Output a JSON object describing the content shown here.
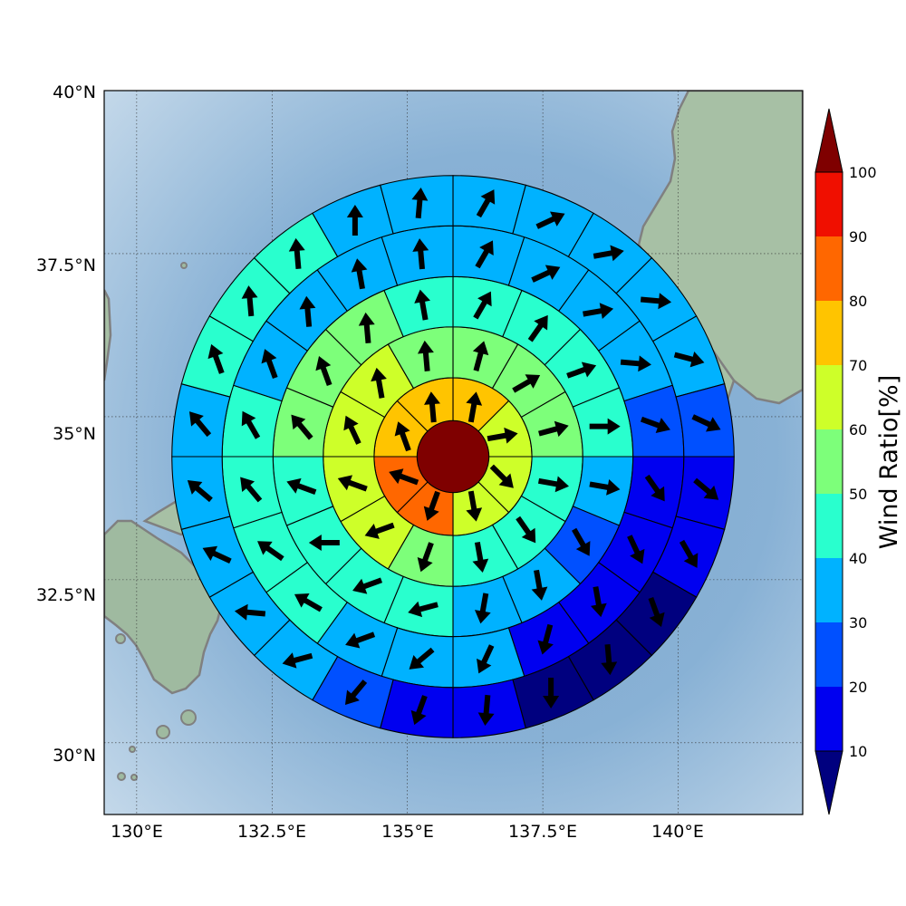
{
  "map": {
    "lat_ticks": [
      {
        "value": 30,
        "label": "30°N"
      },
      {
        "value": 32.5,
        "label": "32.5°N"
      },
      {
        "value": 35,
        "label": "35°N"
      },
      {
        "value": 37.5,
        "label": "37.5°N"
      },
      {
        "value": 40,
        "label": "40°N"
      }
    ],
    "lon_ticks": [
      {
        "value": 130,
        "label": "130°E"
      },
      {
        "value": 132.5,
        "label": "132.5°E"
      },
      {
        "value": 135,
        "label": "135°E"
      },
      {
        "value": 137.5,
        "label": "137.5°E"
      },
      {
        "value": 140,
        "label": "140°E"
      }
    ],
    "colors": {
      "sea": "#8db3d6",
      "land": "#9fbaa0",
      "coastline": "#808080",
      "grid": "#333333",
      "ring_edge": "#000000",
      "arrow": "#000000"
    }
  },
  "colorbar": {
    "label": "Wind Ratio[%]",
    "ticks": [
      "10",
      "20",
      "30",
      "40",
      "50",
      "60",
      "70",
      "80",
      "90",
      "100"
    ],
    "colors": [
      "#00007f",
      "#0000f0",
      "#0050ff",
      "#00b2ff",
      "#29ffce",
      "#7dff7a",
      "#ceff29",
      "#ffc400",
      "#ff6700",
      "#f00f00",
      "#7f0000"
    ],
    "extend": "both"
  },
  "chart_data": {
    "type": "polar_sector_map",
    "center_value": 100,
    "ring_radii": [
      0,
      0.44,
      1.21,
      1.99,
      2.76,
      3.54,
      4.31
    ],
    "rings": [
      {
        "wind_ratio": [
          70,
          60,
          60,
          60,
          80,
          80,
          70,
          70
        ],
        "wind_dir_deg": [
          10,
          80,
          135,
          170,
          200,
          290,
          340,
          355
        ]
      },
      {
        "wind_ratio": [
          50,
          50,
          50,
          40,
          40,
          40,
          50,
          60,
          60,
          60,
          60,
          50
        ],
        "wind_dir_deg": [
          15,
          60,
          75,
          100,
          145,
          170,
          200,
          250,
          290,
          335,
          350,
          355
        ]
      },
      {
        "wind_ratio": [
          40,
          40,
          40,
          40,
          30,
          20,
          30,
          30,
          40,
          40,
          40,
          40,
          50,
          50,
          50,
          40
        ],
        "wind_dir_deg": [
          30,
          35,
          70,
          90,
          100,
          150,
          170,
          190,
          255,
          250,
          270,
          290,
          320,
          340,
          355,
          350
        ]
      },
      {
        "wind_ratio": [
          30,
          30,
          30,
          30,
          20,
          10,
          10,
          10,
          10,
          30,
          30,
          30,
          40,
          40,
          40,
          40,
          30,
          30,
          30,
          30
        ],
        "wind_dir_deg": [
          30,
          65,
          80,
          95,
          110,
          145,
          155,
          170,
          195,
          205,
          230,
          250,
          300,
          305,
          320,
          330,
          340,
          355,
          350,
          355
        ]
      },
      {
        "wind_ratio": [
          30,
          30,
          30,
          30,
          30,
          20,
          10,
          10,
          0,
          0,
          0,
          10,
          10,
          20,
          30,
          30,
          30,
          30,
          30,
          40,
          40,
          40,
          30,
          30
        ],
        "wind_dir_deg": [
          30,
          65,
          80,
          95,
          105,
          115,
          130,
          150,
          160,
          175,
          180,
          185,
          200,
          220,
          255,
          275,
          295,
          310,
          320,
          340,
          355,
          355,
          0,
          5
        ]
      }
    ],
    "x_range_deg_e": [
      129.4,
      142.3
    ],
    "y_range_deg_n": [
      28.9,
      40.0
    ]
  }
}
